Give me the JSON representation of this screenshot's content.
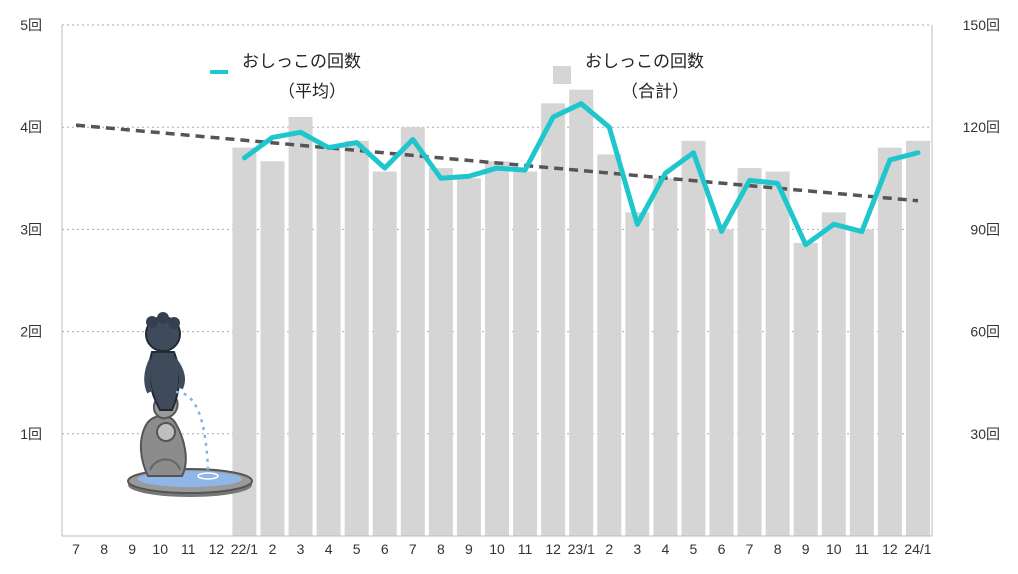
{
  "chart_data": {
    "type": "bar",
    "categories": [
      "7",
      "8",
      "9",
      "10",
      "11",
      "12",
      "22/1",
      "2",
      "3",
      "4",
      "5",
      "6",
      "7",
      "8",
      "9",
      "10",
      "11",
      "12",
      "23/1",
      "2",
      "3",
      "4",
      "5",
      "6",
      "7",
      "8",
      "9",
      "10",
      "11",
      "12",
      "24/1"
    ],
    "series": [
      {
        "name": "おしっこの回数（合計）",
        "type": "bar",
        "axis": "right",
        "values": [
          null,
          null,
          null,
          null,
          null,
          null,
          114,
          110,
          123,
          114,
          116,
          107,
          120,
          108,
          105,
          110,
          107,
          127,
          131,
          112,
          95,
          105,
          116,
          90,
          108,
          107,
          86,
          95,
          90,
          114,
          116
        ]
      },
      {
        "name": "おしっこの回数（平均）",
        "type": "line",
        "axis": "left",
        "values": [
          null,
          null,
          null,
          null,
          null,
          null,
          3.7,
          3.9,
          3.95,
          3.8,
          3.85,
          3.6,
          3.88,
          3.5,
          3.52,
          3.6,
          3.58,
          4.1,
          4.23,
          4.0,
          3.05,
          3.55,
          3.75,
          2.98,
          3.48,
          3.45,
          2.85,
          3.05,
          2.98,
          3.68,
          3.75
        ]
      },
      {
        "name": "trend",
        "type": "line",
        "style": "dashed",
        "axis": "left",
        "values": [
          4.02,
          null,
          null,
          null,
          null,
          null,
          null,
          null,
          null,
          null,
          null,
          null,
          null,
          null,
          null,
          null,
          null,
          null,
          null,
          null,
          null,
          null,
          null,
          null,
          null,
          null,
          null,
          null,
          null,
          null,
          3.28
        ]
      }
    ],
    "yleft": {
      "min": 0,
      "max": 5,
      "ticks": [
        "1回",
        "2回",
        "3回",
        "4回",
        "5回"
      ]
    },
    "yright": {
      "min": 0,
      "max": 150,
      "ticks": [
        "30回",
        "60回",
        "90回",
        "120回",
        "150回"
      ]
    },
    "legend": {
      "line_label_1": "おしっこの回数",
      "line_label_2": "（平均）",
      "bar_label_1": "おしっこの回数",
      "bar_label_2": "（合計）"
    },
    "grid": true,
    "colors": {
      "bar": "#d5d5d5",
      "line": "#1fc7cc",
      "trend": "#555555",
      "grid": "#aaaaaa"
    }
  }
}
